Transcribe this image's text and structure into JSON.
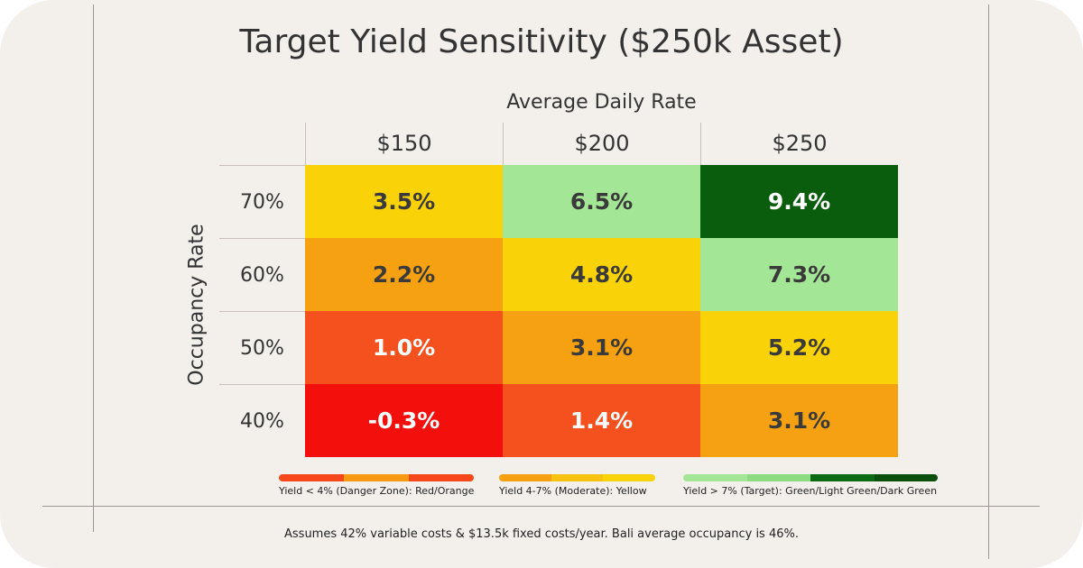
{
  "chart_data": {
    "type": "heatmap",
    "title": "Target Yield Sensitivity ($250k Asset)",
    "xlabel": "Average Daily Rate",
    "ylabel": "Occupancy Rate",
    "x_categories": [
      "$150",
      "$200",
      "$250"
    ],
    "y_categories": [
      "70%",
      "60%",
      "50%",
      "40%"
    ],
    "values": [
      [
        3.5,
        6.5,
        9.4
      ],
      [
        2.2,
        4.8,
        7.3
      ],
      [
        1.0,
        3.1,
        5.2
      ],
      [
        -0.3,
        1.4,
        3.1
      ]
    ],
    "labels": [
      [
        "3.5%",
        "6.5%",
        "9.4%"
      ],
      [
        "2.2%",
        "4.8%",
        "7.3%"
      ],
      [
        "1.0%",
        "3.1%",
        "5.2%"
      ],
      [
        "-0.3%",
        "1.4%",
        "3.1%"
      ]
    ],
    "cell_colors": [
      [
        "#f9d308",
        "#a3e695",
        "#0b5d0e"
      ],
      [
        "#f5a112",
        "#f9d308",
        "#a3e695"
      ],
      [
        "#f4511e",
        "#f5a112",
        "#f9d308"
      ],
      [
        "#f20f0c",
        "#f4511e",
        "#f5a112"
      ]
    ],
    "text_colors": [
      [
        "#3a3a3a",
        "#3a3a3a",
        "#ffffff"
      ],
      [
        "#3a3a3a",
        "#3a3a3a",
        "#3a3a3a"
      ],
      [
        "#ffffff",
        "#3a3a3a",
        "#3a3a3a"
      ],
      [
        "#ffffff",
        "#ffffff",
        "#3a3a3a"
      ]
    ],
    "legend": [
      {
        "label": "Yield < 4% (Danger Zone): Red/Orange",
        "colors": [
          "#f4481a",
          "#f59a12",
          "#f4481a"
        ]
      },
      {
        "label": "Yield 4-7% (Moderate): Yellow",
        "colors": [
          "#f5a112",
          "#f7c310",
          "#f9d308"
        ]
      },
      {
        "label": "Yield > 7% (Target): Green/Light Green/Dark Green",
        "colors": [
          "#a3e695",
          "#8edc82",
          "#0c6b12",
          "#0b4f0c"
        ]
      }
    ],
    "legend_placement": "bottom"
  },
  "footer": "Assumes 42% variable costs & $13.5k fixed costs/year. Bali average occupancy is 46%."
}
